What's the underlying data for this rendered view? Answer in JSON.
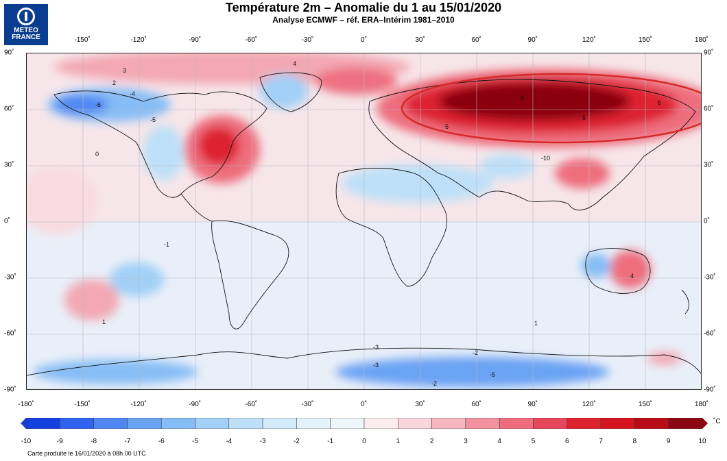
{
  "logo": {
    "line1": "METEO",
    "line2": "FRANCE"
  },
  "title": "Température 2m – Anomalie du 1 au 15/01/2020",
  "subtitle": "Analyse ECMWF – réf. ERA–Intérim 1981–2010",
  "axes": {
    "lon_top": [
      "-150˚",
      "-120˚",
      "-90˚",
      "-60˚",
      "-30˚",
      "0˚",
      "30˚",
      "60˚",
      "90˚",
      "120˚",
      "150˚",
      "180˚"
    ],
    "lon_bottom": [
      "-180˚",
      "-150˚",
      "-120˚",
      "-90˚",
      "-60˚",
      "-30˚",
      "0˚",
      "30˚",
      "60˚",
      "90˚",
      "120˚",
      "150˚",
      "180˚"
    ],
    "lat_left": [
      "90˚",
      "60˚",
      "30˚",
      "0˚",
      "-30˚",
      "-60˚",
      "-90˚"
    ],
    "lat_right": [
      "90˚",
      "60˚",
      "30˚",
      "0˚",
      "-30˚",
      "-60˚",
      "-90˚"
    ]
  },
  "colorbar": {
    "labels": [
      "-10",
      "-9",
      "-8",
      "-7",
      "-6",
      "-5",
      "-4",
      "-3",
      "-2",
      "-1",
      "0",
      "1",
      "2",
      "3",
      "4",
      "5",
      "6",
      "7",
      "8",
      "9",
      "10"
    ],
    "colors": [
      "#1540e0",
      "#2f63f0",
      "#4f86f2",
      "#6aa3f4",
      "#86bdf6",
      "#a2d0f7",
      "#bde0f8",
      "#d2ebfa",
      "#e4f2fb",
      "#eef6fc",
      "#fbecef",
      "#f9d6dc",
      "#f6b6c0",
      "#f393a0",
      "#ee6e7e",
      "#e6475a",
      "#dd2230",
      "#d4141f",
      "#b80c16",
      "#8a0610"
    ],
    "unit": "˚C"
  },
  "contour_labels": [
    "3",
    "2",
    "4",
    "-6",
    "-5",
    "-4",
    "-3",
    "-2",
    "-1",
    "0",
    "1",
    "5",
    "6",
    "-10",
    "-5",
    "-3",
    "-2",
    "4",
    "6",
    "5",
    "1"
  ],
  "footer": "Carte produite le 16/01/2020 à 08h 00 UTC"
}
